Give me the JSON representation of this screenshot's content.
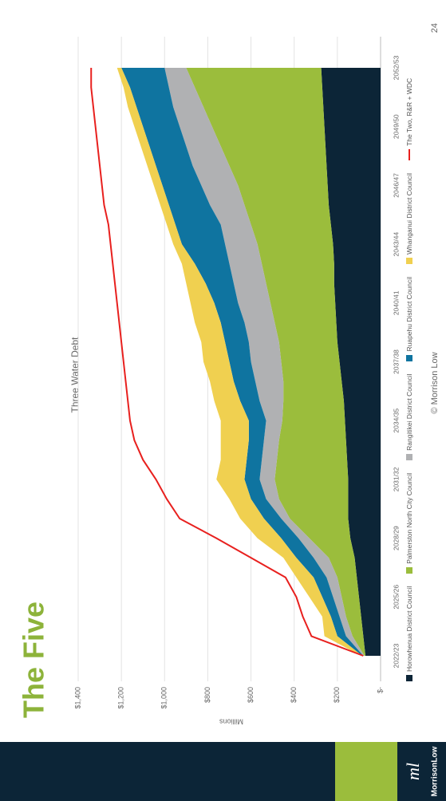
{
  "slide": {
    "title": "The Five",
    "footer": "© Morrison Low",
    "page_number": "24",
    "logo_mark": "ml",
    "logo_text": "MorrisonLow"
  },
  "chart_data": {
    "type": "area",
    "stacked": true,
    "title": "Three Water Debt",
    "y_label": "Millions",
    "categories": [
      "2022/23",
      null,
      null,
      "2025/26",
      null,
      null,
      "2028/29",
      null,
      null,
      "2031/32",
      null,
      null,
      "2034/35",
      null,
      null,
      "2037/38",
      null,
      null,
      "2040/41",
      null,
      null,
      "2043/44",
      null,
      null,
      "2046/47",
      null,
      null,
      "2049/50",
      null,
      null,
      "2052/53"
    ],
    "ylim": [
      0,
      1400
    ],
    "yticks": [
      {
        "value": 0,
        "label": "$-"
      },
      {
        "value": 200,
        "label": "$200"
      },
      {
        "value": 400,
        "label": "$400"
      },
      {
        "value": 600,
        "label": "$600"
      },
      {
        "value": 800,
        "label": "$800"
      },
      {
        "value": 1000,
        "label": "$1,000"
      },
      {
        "value": 1200,
        "label": "$1,200"
      },
      {
        "value": 1400,
        "label": "$1,400"
      }
    ],
    "grid": true,
    "series": [
      {
        "name": "Horowhenua District Council",
        "color": "#0c2537",
        "values": [
          70,
          80,
          90,
          100,
          110,
          120,
          140,
          150,
          150,
          150,
          155,
          160,
          165,
          170,
          180,
          190,
          200,
          205,
          210,
          215,
          215,
          220,
          230,
          240,
          245,
          250,
          255,
          260,
          265,
          270,
          275
        ]
      },
      {
        "name": "Palmerston North City Council",
        "color": "#9bbd3c",
        "values": [
          5,
          50,
          70,
          80,
          90,
          120,
          190,
          270,
          320,
          340,
          325,
          310,
          290,
          280,
          270,
          270,
          270,
          285,
          300,
          315,
          335,
          350,
          370,
          390,
          415,
          450,
          485,
          520,
          555,
          590,
          625
        ]
      },
      {
        "name": "Rangitikei District Council",
        "color": "#b0b1b3",
        "values": [
          5,
          30,
          30,
          40,
          50,
          70,
          50,
          40,
          60,
          70,
          70,
          70,
          75,
          110,
          130,
          140,
          140,
          140,
          150,
          150,
          150,
          150,
          140,
          160,
          170,
          170,
          160,
          150,
          140,
          120,
          100
        ]
      },
      {
        "name": "Ruapehu District Council",
        "color": "#0f74a0",
        "values": [
          5,
          40,
          40,
          50,
          60,
          80,
          80,
          80,
          70,
          70,
          70,
          70,
          80,
          90,
          100,
          100,
          110,
          110,
          110,
          130,
          160,
          200,
          210,
          190,
          180,
          170,
          170,
          170,
          170,
          180,
          200
        ]
      },
      {
        "name": "Whanganui District Council",
        "color": "#f0d050",
        "values": [
          5,
          60,
          40,
          60,
          80,
          60,
          110,
          110,
          100,
          130,
          120,
          130,
          130,
          120,
          110,
          120,
          110,
          120,
          110,
          90,
          60,
          40,
          40,
          40,
          40,
          40,
          40,
          40,
          40,
          30,
          20
        ]
      },
      {
        "name": "The Two, R&R + WDC",
        "color": "#e8201e",
        "type": "line",
        "values": [
          80,
          320,
          360,
          390,
          440,
          600,
          760,
          930,
          990,
          1040,
          1100,
          1140,
          1160,
          1170,
          1180,
          1190,
          1200,
          1210,
          1220,
          1230,
          1240,
          1250,
          1260,
          1280,
          1290,
          1300,
          1310,
          1320,
          1330,
          1340,
          1340
        ]
      }
    ]
  }
}
